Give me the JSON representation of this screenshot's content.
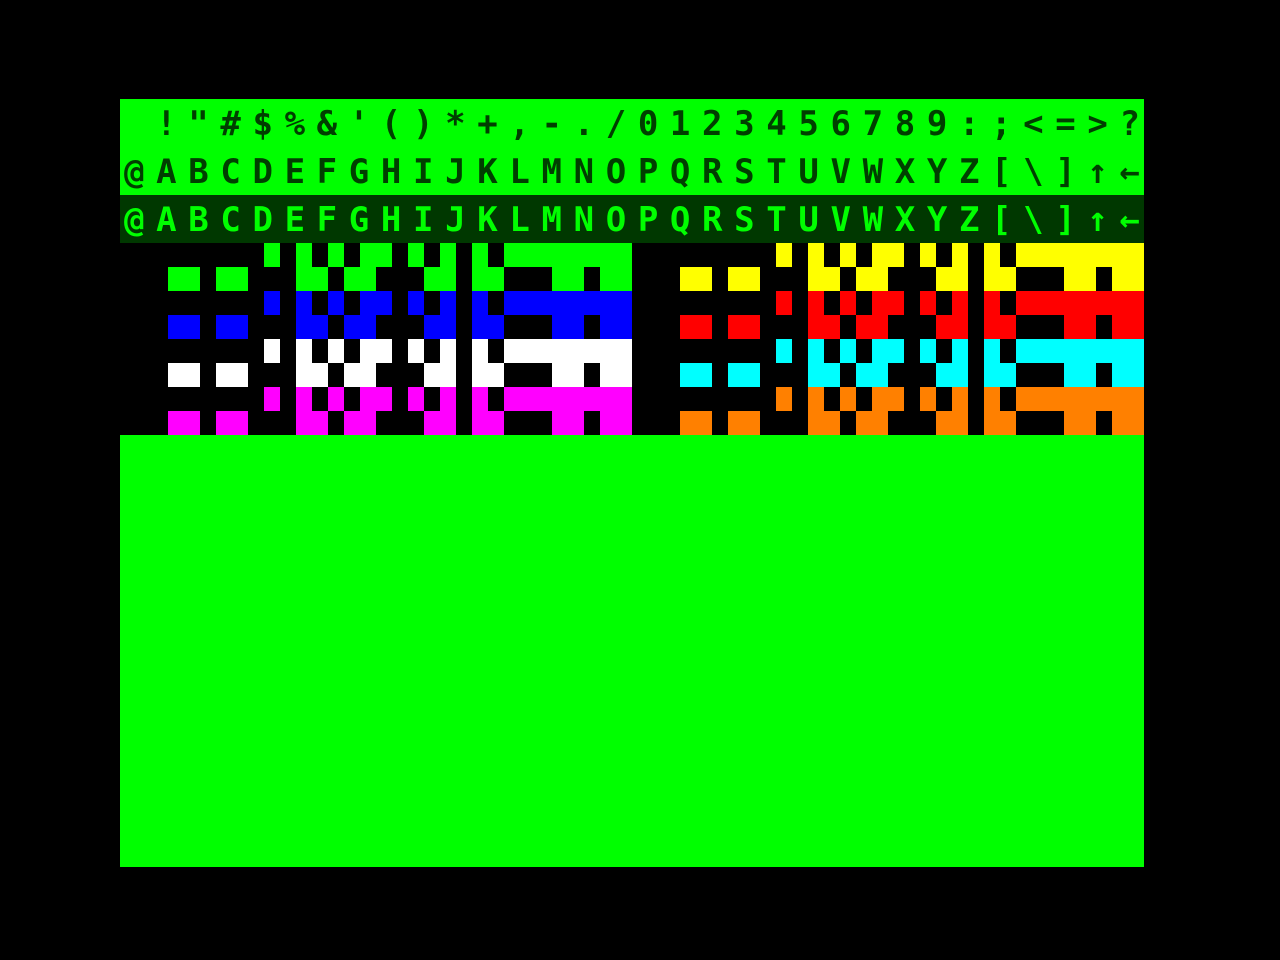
{
  "screen": {
    "text_rows": [
      " !\"#$%&'()*+,-./0123456789:;<=>?",
      "@ABCDEFGHIJKLMNOPQRSTUVWXYZ[\\]↑←",
      "@ABCDEFGHIJKLMNOPQRSTUVWXYZ[\\]↑←"
    ],
    "semigraphic_colors": [
      "#00ff00",
      "#ffff00",
      "#0000ff",
      "#ff0000",
      "#ffffff",
      "#00ffff",
      "#ff00ff",
      "#ff8000"
    ]
  }
}
